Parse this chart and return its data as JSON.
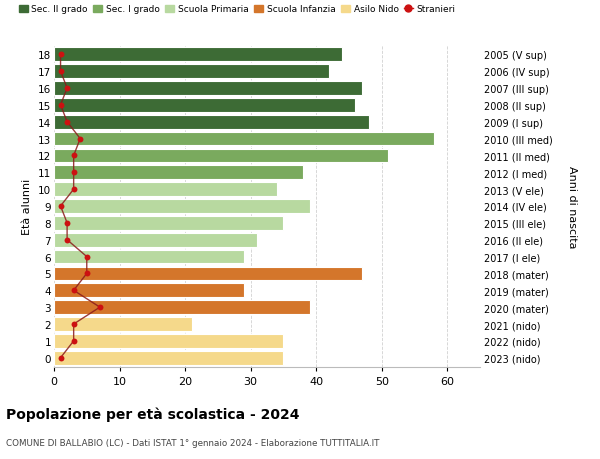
{
  "ages": [
    18,
    17,
    16,
    15,
    14,
    13,
    12,
    11,
    10,
    9,
    8,
    7,
    6,
    5,
    4,
    3,
    2,
    1,
    0
  ],
  "values": [
    44,
    42,
    47,
    46,
    48,
    58,
    51,
    38,
    34,
    39,
    35,
    31,
    29,
    47,
    29,
    39,
    21,
    35,
    35
  ],
  "bar_colors_by_age": {
    "18": "#3d6b35",
    "17": "#3d6b35",
    "16": "#3d6b35",
    "15": "#3d6b35",
    "14": "#3d6b35",
    "13": "#7aaa5e",
    "12": "#7aaa5e",
    "11": "#7aaa5e",
    "10": "#b8d9a0",
    "9": "#b8d9a0",
    "8": "#b8d9a0",
    "7": "#b8d9a0",
    "6": "#b8d9a0",
    "5": "#d4762b",
    "4": "#d4762b",
    "3": "#d4762b",
    "2": "#f5d98b",
    "1": "#f5d98b",
    "0": "#f5d98b"
  },
  "right_labels": {
    "18": "2005 (V sup)",
    "17": "2006 (IV sup)",
    "16": "2007 (III sup)",
    "15": "2008 (II sup)",
    "14": "2009 (I sup)",
    "13": "2010 (III med)",
    "12": "2011 (II med)",
    "11": "2012 (I med)",
    "10": "2013 (V ele)",
    "9": "2014 (IV ele)",
    "8": "2015 (III ele)",
    "7": "2016 (II ele)",
    "6": "2017 (I ele)",
    "5": "2018 (mater)",
    "4": "2019 (mater)",
    "3": "2020 (mater)",
    "2": "2021 (nido)",
    "1": "2022 (nido)",
    "0": "2023 (nido)"
  },
  "stranieri_values": [
    1,
    1,
    2,
    1,
    2,
    4,
    3,
    3,
    3,
    1,
    2,
    2,
    5,
    5,
    3,
    7,
    3,
    3,
    1
  ],
  "title": "Popolazione per età scolastica - 2024",
  "subtitle": "COMUNE DI BALLABIO (LC) - Dati ISTAT 1° gennaio 2024 - Elaborazione TUTTITALIA.IT",
  "right_axis_label": "Anni di nascita",
  "ylabel": "Età alunni",
  "xlim": [
    0,
    65
  ],
  "ylim_min": -0.55,
  "ylim_max": 18.55,
  "background": "#ffffff",
  "grid_color": "#cccccc",
  "legend_colors": {
    "Sec. II grado": "#3d6b35",
    "Sec. I grado": "#7aaa5e",
    "Scuola Primaria": "#b8d9a0",
    "Scuola Infanzia": "#d4762b",
    "Asilo Nido": "#f5d98b"
  },
  "stranieri_line_color": "#8b1a1a",
  "stranieri_dot_color": "#cc1111"
}
